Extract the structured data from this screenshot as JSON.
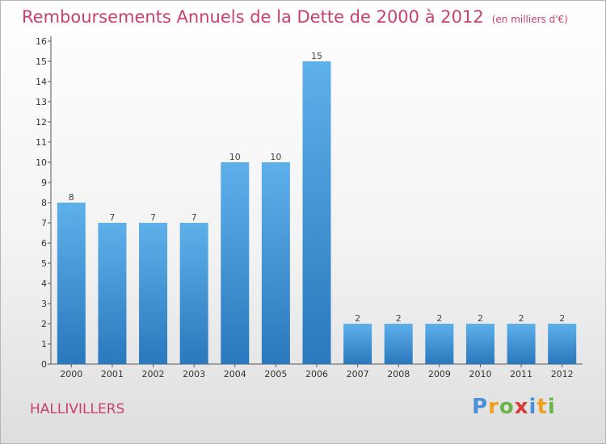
{
  "title": "Remboursements Annuels de la Dette de 2000 à 2012",
  "subtitle": "(en milliers d'€)",
  "commune": "HALLIVILLERS",
  "logo": {
    "letters": [
      "P",
      "r",
      "o",
      "x",
      "i",
      "t",
      "i"
    ],
    "colors": [
      "#4a90d9",
      "#f0a020",
      "#6ab34a",
      "#d93b3b",
      "#4a90d9",
      "#f0a020",
      "#6ab34a"
    ]
  },
  "colors": {
    "bar": "#3e95d9",
    "bar_light": "#5eb0ea",
    "bar_dark": "#2a78bd",
    "title": "#c8406e"
  },
  "chart_data": {
    "type": "bar",
    "categories": [
      "2000",
      "2001",
      "2002",
      "2003",
      "2004",
      "2005",
      "2006",
      "2007",
      "2008",
      "2009",
      "2010",
      "2011",
      "2012"
    ],
    "values": [
      8,
      7,
      7,
      7,
      10,
      10,
      15,
      2,
      2,
      2,
      2,
      2,
      2
    ],
    "data_labels": [
      "8",
      "7",
      "7",
      "7",
      "10",
      "10",
      "15",
      "2",
      "2",
      "2",
      "2",
      "2",
      "2"
    ],
    "y_ticks": [
      "0",
      "1",
      "2",
      "3",
      "4",
      "5",
      "6",
      "7",
      "8",
      "9",
      "10",
      "11",
      "12",
      "13",
      "14",
      "15",
      "16"
    ],
    "ylim": [
      0,
      16
    ],
    "grid": false,
    "legend": "none"
  }
}
